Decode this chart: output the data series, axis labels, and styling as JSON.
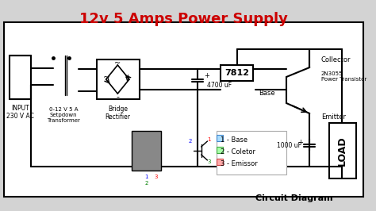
{
  "title": "12v 5 Amps Power Supply",
  "subtitle": "Circuit Diagram",
  "title_color": "#cc0000",
  "bg_color": "#d3d3d3",
  "line_color": "#000000",
  "label_input": "INPUT\n230 V AC",
  "label_transformer": "0-12 V 5 A\nSetpdown\nTransformer",
  "label_bridge": "Bridge\nRectifier",
  "label_cap1": "4700 uF",
  "label_7812": "7812",
  "label_transistor": "2N3055\nPower Transistor",
  "label_collector": "Collector",
  "label_base": "Base",
  "label_emitter": "Emitter",
  "label_cap2": "1000 uF",
  "label_load": "LOAD",
  "legend_1": "1 - Base",
  "legend_2": "2 - Coletor",
  "legend_3": "3 - Emissor"
}
